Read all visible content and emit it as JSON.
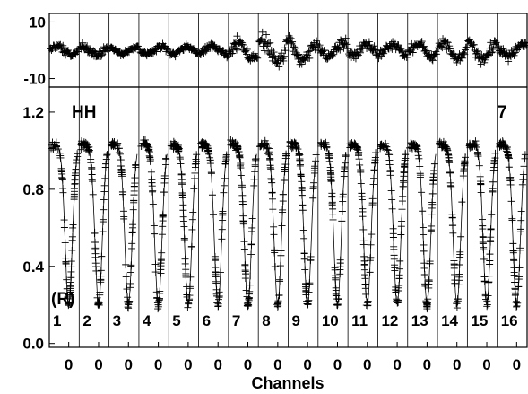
{
  "chart_data": [
    {
      "panel": "residuals",
      "type": "scatter",
      "ylim": [
        -13,
        13
      ],
      "yticks": [
        {
          "value": 10,
          "label": "10"
        },
        {
          "value": -10,
          "label": "-10"
        }
      ],
      "channels": 16,
      "marker": "+",
      "residual_amplitude_by_channel": [
        2.2,
        2.6,
        2.0,
        2.4,
        2.1,
        2.3,
        4.5,
        6.5,
        5.5,
        4.0,
        3.5,
        3.0,
        3.8,
        4.2,
        4.8,
        3.2
      ]
    },
    {
      "panel": "light-curves",
      "type": "scatter",
      "xlabel": "Channels",
      "ylim": [
        -0.02,
        1.33
      ],
      "yticks": [
        {
          "value": 0.0,
          "label": "0.0"
        },
        {
          "value": 0.4,
          "label": "0.4"
        },
        {
          "value": 0.8,
          "label": "0.8"
        },
        {
          "value": 1.2,
          "label": "1.2"
        }
      ],
      "channel_labels": [
        "1",
        "2",
        "3",
        "4",
        "5",
        "6",
        "7",
        "8",
        "9",
        "10",
        "11",
        "12",
        "13",
        "14",
        "15",
        "16"
      ],
      "xtick_labels": [
        "0",
        "0",
        "0",
        "0",
        "0",
        "0",
        "0",
        "0",
        "0",
        "0",
        "0",
        "0",
        "0",
        "0",
        "0",
        "0"
      ],
      "baseline": 1.03,
      "dip_minimum": 0.2,
      "annotations": {
        "top_left": "HH",
        "top_right": "7",
        "lower_left": "(R)"
      },
      "marker": "+"
    }
  ]
}
